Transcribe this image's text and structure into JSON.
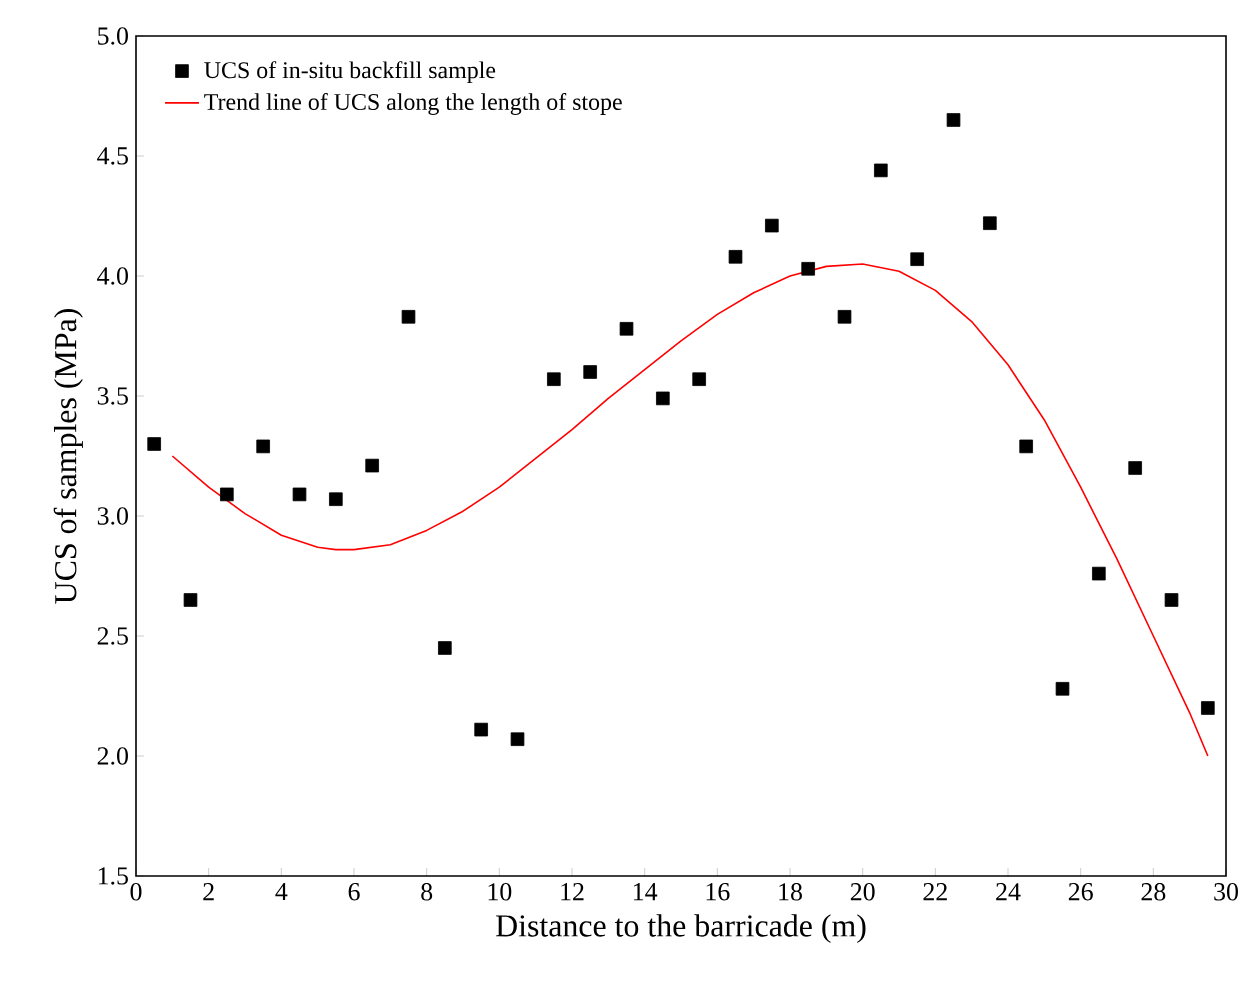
{
  "chart_data": {
    "type": "scatter",
    "xlabel": "Distance to the barricade (m)",
    "ylabel": "UCS of samples (MPa)",
    "xlim": [
      0,
      30
    ],
    "ylim": [
      1.5,
      5.0
    ],
    "xticks": [
      0,
      2,
      4,
      6,
      8,
      10,
      12,
      14,
      16,
      18,
      20,
      22,
      24,
      26,
      28,
      30
    ],
    "yticks": [
      {
        "value": 1.5,
        "label": "1.5"
      },
      {
        "value": 2.0,
        "label": "2.0"
      },
      {
        "value": 2.5,
        "label": "2.5"
      },
      {
        "value": 3.0,
        "label": "3.0"
      },
      {
        "value": 3.5,
        "label": "3.5"
      },
      {
        "value": 4.0,
        "label": "4.0"
      },
      {
        "value": 4.5,
        "label": "4.5"
      },
      {
        "value": 5.0,
        "label": "5.0"
      }
    ],
    "legend": "top left",
    "grid": false,
    "series": [
      {
        "name": "UCS of in-situ backfill sample",
        "marker": "square",
        "color": "#000000",
        "x": [
          0.5,
          1.5,
          2.5,
          3.5,
          4.5,
          5.5,
          6.5,
          7.5,
          8.5,
          9.5,
          10.5,
          11.5,
          12.5,
          13.5,
          14.5,
          15.5,
          16.5,
          17.5,
          18.5,
          19.5,
          20.5,
          21.5,
          22.5,
          23.5,
          24.5,
          25.5,
          26.5,
          27.5,
          28.5,
          29.5
        ],
        "values": [
          3.3,
          2.65,
          3.09,
          3.29,
          3.09,
          3.07,
          3.21,
          3.83,
          2.45,
          2.11,
          2.07,
          3.57,
          3.6,
          3.78,
          3.49,
          3.57,
          4.08,
          4.21,
          4.03,
          3.83,
          4.44,
          4.07,
          4.65,
          4.22,
          3.29,
          2.28,
          2.76,
          3.2,
          2.65,
          2.2
        ]
      },
      {
        "name": "Trend line of UCS along the length of stope",
        "type": "line",
        "marker": "none",
        "line_style": "solid",
        "color": "#ff0000",
        "x": [
          1,
          2,
          3,
          4,
          5,
          5.5,
          6,
          7,
          8,
          9,
          10,
          11,
          12,
          13,
          14,
          15,
          16,
          17,
          18,
          19,
          20,
          21,
          22,
          23,
          24,
          25,
          26,
          27,
          28,
          29,
          29.5
        ],
        "values": [
          3.25,
          3.12,
          3.01,
          2.92,
          2.87,
          2.86,
          2.86,
          2.88,
          2.94,
          3.02,
          3.12,
          3.24,
          3.36,
          3.49,
          3.61,
          3.73,
          3.84,
          3.93,
          4.0,
          4.04,
          4.05,
          4.02,
          3.94,
          3.81,
          3.63,
          3.4,
          3.12,
          2.82,
          2.5,
          2.18,
          2.0
        ]
      }
    ]
  }
}
